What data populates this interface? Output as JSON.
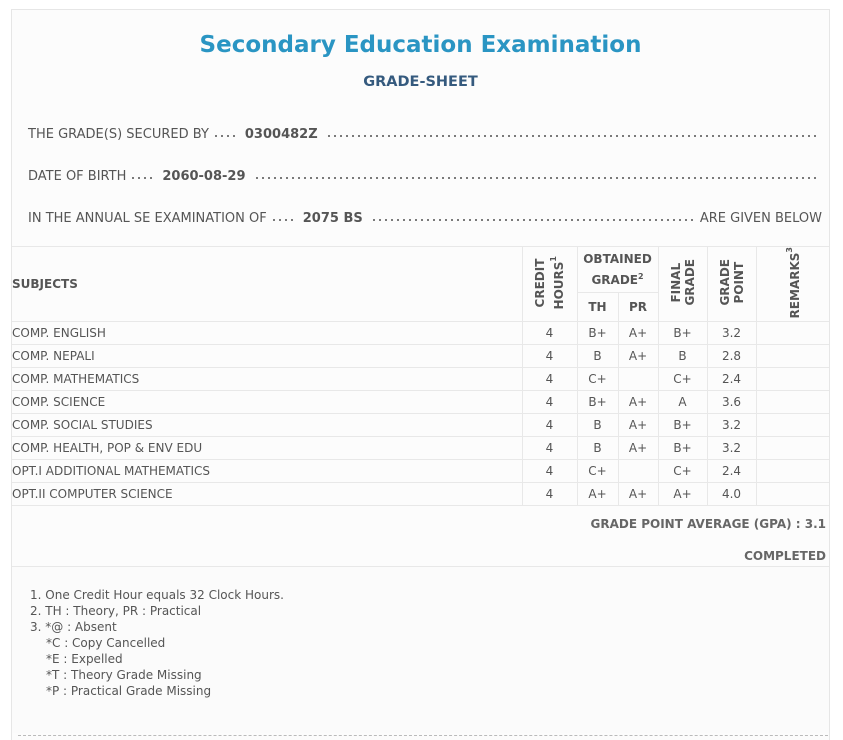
{
  "header": {
    "title": "Secondary Education Examination",
    "subtitle": "GRADE-SHEET"
  },
  "details": {
    "secured_by_label": "THE GRADE(S) SECURED BY",
    "symbol_number": "0300482Z",
    "dob_label": "DATE OF BIRTH",
    "dob": "2060-08-29",
    "exam_label": "IN THE ANNUAL SE EXAMINATION OF",
    "exam_year": "2075 BS",
    "exam_tail": "ARE GIVEN BELOW"
  },
  "table": {
    "headers": {
      "subjects": "SUBJECTS",
      "credit_line1": "CREDIT",
      "credit_line2": "HOURS",
      "credit_sup": "1",
      "obtained": "OBTAINED",
      "grade": "GRADE",
      "grade_sup": "2",
      "th": "TH",
      "pr": "PR",
      "final_line1": "FINAL",
      "final_line2": "GRADE",
      "gp_line1": "GRADE",
      "gp_line2": "POINT",
      "remarks": "REMARKS",
      "remarks_sup": "3"
    },
    "rows": [
      {
        "subject": "COMP. ENGLISH",
        "credit": "4",
        "th": "B+",
        "pr": "A+",
        "final": "B+",
        "gp": "3.2",
        "remarks": ""
      },
      {
        "subject": "COMP. NEPALI",
        "credit": "4",
        "th": "B",
        "pr": "A+",
        "final": "B",
        "gp": "2.8",
        "remarks": ""
      },
      {
        "subject": "COMP. MATHEMATICS",
        "credit": "4",
        "th": "C+",
        "pr": "",
        "final": "C+",
        "gp": "2.4",
        "remarks": ""
      },
      {
        "subject": "COMP. SCIENCE",
        "credit": "4",
        "th": "B+",
        "pr": "A+",
        "final": "A",
        "gp": "3.6",
        "remarks": ""
      },
      {
        "subject": "COMP. SOCIAL STUDIES",
        "credit": "4",
        "th": "B",
        "pr": "A+",
        "final": "B+",
        "gp": "3.2",
        "remarks": ""
      },
      {
        "subject": "COMP. HEALTH, POP & ENV EDU",
        "credit": "4",
        "th": "B",
        "pr": "A+",
        "final": "B+",
        "gp": "3.2",
        "remarks": ""
      },
      {
        "subject": "OPT.I ADDITIONAL MATHEMATICS",
        "credit": "4",
        "th": "C+",
        "pr": "",
        "final": "C+",
        "gp": "2.4",
        "remarks": ""
      },
      {
        "subject": "OPT.II COMPUTER SCIENCE",
        "credit": "4",
        "th": "A+",
        "pr": "A+",
        "final": "A+",
        "gp": "4.0",
        "remarks": ""
      }
    ]
  },
  "summary": {
    "gpa_text": "GRADE POINT AVERAGE (GPA) : 3.1",
    "status": "COMPLETED"
  },
  "notes": [
    "1. One Credit Hour equals 32 Clock Hours.",
    "2. TH : Theory, PR : Practical",
    "3. *@ : Absent",
    "*C : Copy Cancelled",
    "*E : Expelled",
    "*T : Theory Grade Missing",
    "*P : Practical Grade Missing"
  ]
}
